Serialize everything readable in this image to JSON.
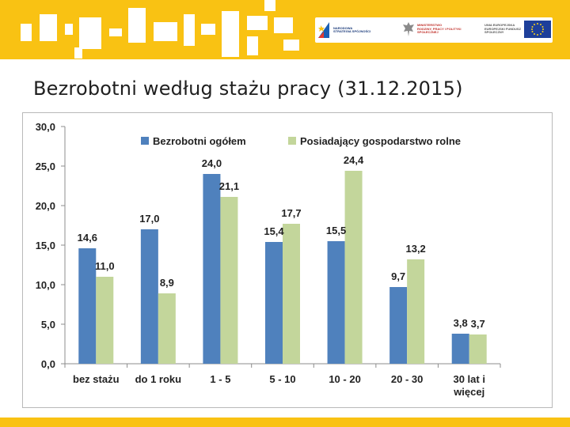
{
  "header": {
    "logos": [
      {
        "name": "nss",
        "text": "NARODOWA\nSTRATEGIA SPÓJNOŚCI"
      },
      {
        "name": "msp",
        "text": "MINISTERSTWO\nRODZINY, PRACY I POLITYKI\nSPOŁECZNEJ"
      },
      {
        "name": "eu",
        "text": "UNIA EUROPEJSKA\nEUROPEJSKI FUNDUSZ\nSPOŁECZNY"
      }
    ]
  },
  "slide": {
    "title": "Bezrobotni według stażu pracy (31.12.2015)"
  },
  "colors": {
    "accent": "#f9c213",
    "series1": "#4f81bd",
    "series2": "#c3d69b"
  },
  "chart_data": {
    "type": "bar",
    "title": "",
    "xlabel": "",
    "ylabel": "",
    "ylim": [
      0,
      30
    ],
    "yticks": [
      "0,0",
      "5,0",
      "10,0",
      "15,0",
      "20,0",
      "25,0",
      "30,0"
    ],
    "grid": false,
    "legend_position": "top",
    "categories": [
      [
        "bez stażu"
      ],
      [
        "do 1 roku"
      ],
      [
        "1 - 5"
      ],
      [
        "5 - 10"
      ],
      [
        "10 - 20"
      ],
      [
        "20 - 30"
      ],
      [
        "30 lat i",
        "więcej"
      ]
    ],
    "series": [
      {
        "name": "Bezrobotni ogółem",
        "values": [
          14.6,
          17.0,
          24.0,
          15.4,
          15.5,
          9.7,
          3.8
        ],
        "labels": [
          "14,6",
          "17,0",
          "24,0",
          "15,4",
          "15,5",
          "9,7",
          "3,8"
        ]
      },
      {
        "name": "Posiadający gospodarstwo  rolne",
        "values": [
          11.0,
          8.9,
          21.1,
          17.7,
          24.4,
          13.2,
          3.7
        ],
        "labels": [
          "11,0",
          "8,9",
          "21,1",
          "17,7",
          "24,4",
          "13,2",
          "3,7"
        ]
      }
    ]
  }
}
